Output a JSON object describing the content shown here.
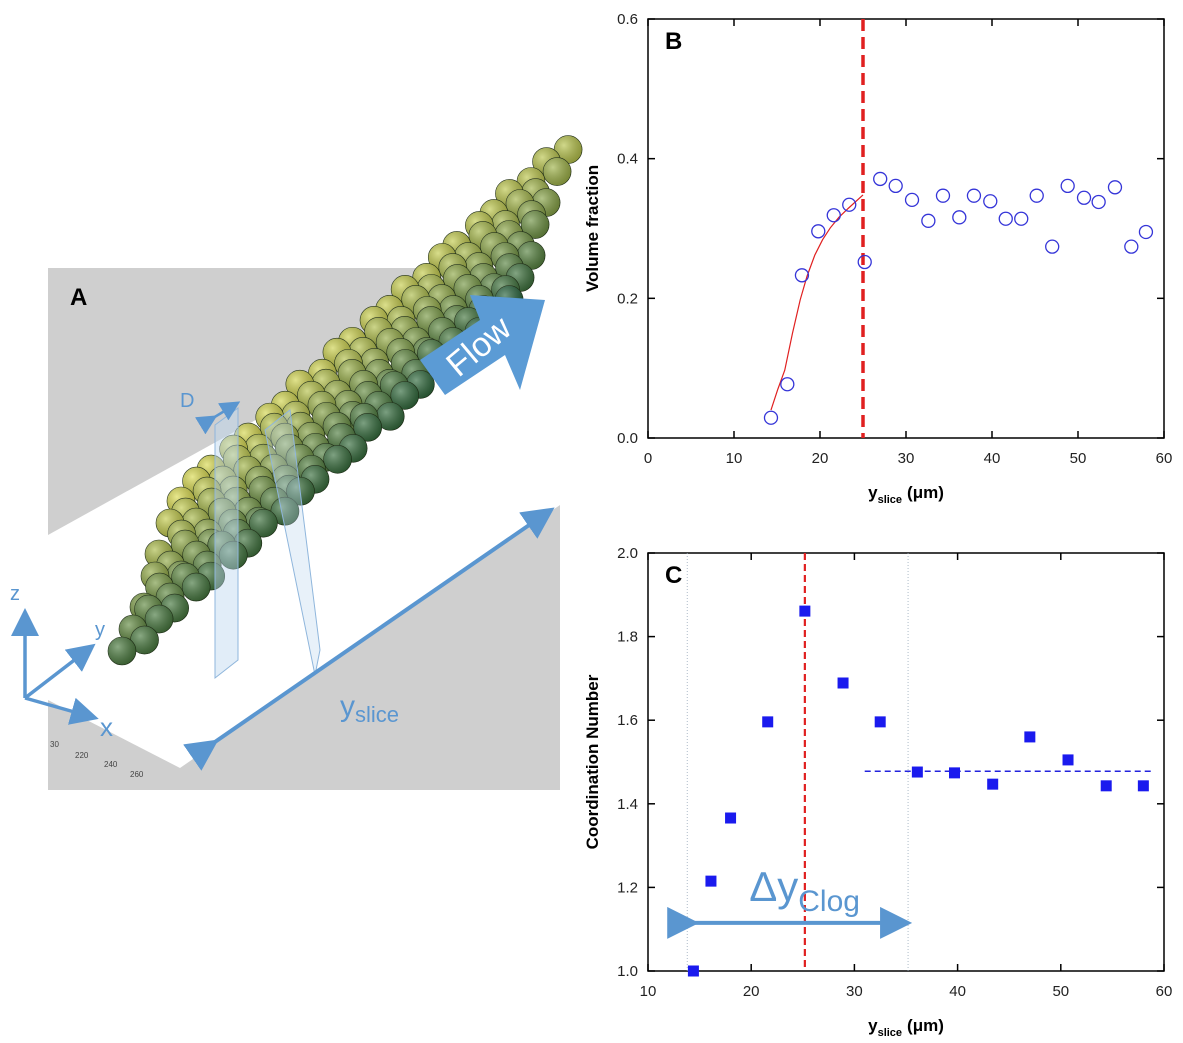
{
  "panel_a": {
    "label": "A",
    "flow": "Flow",
    "d_label": "D",
    "axes": {
      "z": "z",
      "y": "y",
      "x": "x"
    },
    "y_slice": {
      "main": "y",
      "sub": "slice"
    },
    "ticks": [
      "30",
      "220",
      "240",
      "260"
    ]
  },
  "chart_data": [
    {
      "type": "scatter",
      "label": "B",
      "y_label": "Volume fraction",
      "x_label": {
        "main": "y",
        "sub": "slice",
        "unit": "(μm)"
      },
      "x": [
        14.3,
        16.2,
        17.9,
        19.8,
        21.6,
        23.4,
        25.2,
        27.0,
        28.8,
        30.7,
        32.6,
        34.3,
        36.2,
        37.9,
        39.8,
        41.6,
        43.4,
        45.2,
        47.0,
        48.8,
        50.7,
        52.4,
        54.3,
        56.2,
        57.9
      ],
      "series": [
        {
          "marker": "circle",
          "color": "#3535d8",
          "values": [
            0.029,
            0.077,
            0.233,
            0.296,
            0.319,
            0.334,
            0.252,
            0.371,
            0.361,
            0.341,
            0.311,
            0.347,
            0.316,
            0.347,
            0.339,
            0.314,
            0.314,
            0.347,
            0.274,
            0.361,
            0.344,
            0.338,
            0.359,
            0.274,
            0.295
          ]
        }
      ],
      "fit": {
        "color": "#e02020",
        "x": [
          14.3,
          15.1,
          15.9,
          16.8,
          17.7,
          18.5,
          19.4,
          20.3,
          21.2,
          22.2,
          23.3,
          25.0
        ],
        "values": [
          0.04,
          0.07,
          0.097,
          0.15,
          0.198,
          0.232,
          0.262,
          0.284,
          0.301,
          0.316,
          0.329,
          0.348
        ]
      },
      "ref_line": {
        "x": 25,
        "color": "#e02020"
      },
      "xlim": [
        0,
        60
      ],
      "ylim": [
        0,
        0.6
      ],
      "xticks": [
        0,
        10,
        20,
        30,
        40,
        50,
        60
      ],
      "yticks": [
        {
          "value": 0,
          "label": "0.0"
        },
        0.2,
        0.4,
        0.6
      ]
    },
    {
      "type": "scatter",
      "label": "C",
      "y_label": "Coordination Number",
      "x_label": {
        "main": "y",
        "sub": "slice",
        "unit": "(μm)"
      },
      "x": [
        14.4,
        16.1,
        18.0,
        21.6,
        25.2,
        28.9,
        32.5,
        36.1,
        39.7,
        43.4,
        47.0,
        50.7,
        54.4,
        58.0
      ],
      "series": [
        {
          "marker": "square",
          "color": "#1a1aee",
          "values": [
            1.0,
            1.215,
            1.366,
            1.596,
            1.861,
            1.689,
            1.596,
            1.476,
            1.474,
            1.447,
            1.56,
            1.505,
            1.443,
            1.443
          ]
        }
      ],
      "mean_line": {
        "color": "#2222dd",
        "x": [
          31,
          59
        ],
        "values": [
          1.478,
          1.478
        ]
      },
      "ref_line": {
        "x": 25.2,
        "color": "#e02020"
      },
      "bracket": {
        "color": "#5a96d0",
        "x": [
          13.8,
          35.2
        ],
        "y": 1.115
      },
      "annotation": {
        "main": "Δy",
        "sub": "Clog"
      },
      "xlim": [
        10,
        60
      ],
      "ylim": [
        1.0,
        2.0
      ],
      "xticks": [
        10,
        20,
        30,
        40,
        50,
        60
      ],
      "yticks": [
        {
          "value": 1.0,
          "label": "1.0"
        },
        1.2,
        1.4,
        1.6,
        1.8,
        {
          "value": 2.0,
          "label": "2.0"
        }
      ]
    }
  ]
}
